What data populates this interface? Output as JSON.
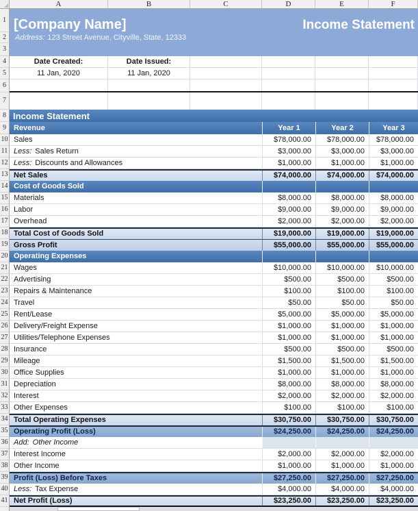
{
  "sheet": {
    "column_letters": [
      "A",
      "B",
      "C",
      "D",
      "E",
      "F"
    ],
    "row_numbers": [
      1,
      2,
      3,
      4,
      5,
      6,
      7,
      8,
      9
    ]
  },
  "banner": {
    "company_name": "[Company Name]",
    "document_title": "Income Statement",
    "address_label": "Address:",
    "address_text": "123 Street Avenue, Cityville, State, 12333"
  },
  "dates": {
    "created_label": "Date Created:",
    "created_value": "11 Jan, 2020",
    "issued_label": "Date Issued:",
    "issued_value": "11 Jan, 2020"
  },
  "statement": {
    "title": "Income Statement",
    "revenue_header": "Revenue",
    "year_headers": [
      "Year 1",
      "Year 2",
      "Year 3"
    ],
    "rows": [
      {
        "n": 10,
        "type": "item",
        "label": "Sales",
        "values": [
          "$78,000.00",
          "$78,000.00",
          "$78,000.00"
        ]
      },
      {
        "n": 11,
        "type": "item",
        "prefix": "Less:",
        "label": "Sales Return",
        "values": [
          "$3,000.00",
          "$3,000.00",
          "$3,000.00"
        ]
      },
      {
        "n": 12,
        "type": "item",
        "prefix": "Less:",
        "label": "Discounts and Allowances",
        "values": [
          "$1,000.00",
          "$1,000.00",
          "$1,000.00"
        ]
      },
      {
        "n": 13,
        "type": "subtotal",
        "label": "Net Sales",
        "values": [
          "$74,000.00",
          "$74,000.00",
          "$74,000.00"
        ]
      },
      {
        "n": 14,
        "type": "section",
        "label": "Cost of Goods Sold",
        "values": [
          "",
          "",
          ""
        ]
      },
      {
        "n": 15,
        "type": "item",
        "label": "Materials",
        "values": [
          "$8,000.00",
          "$8,000.00",
          "$8,000.00"
        ]
      },
      {
        "n": 16,
        "type": "item",
        "label": "Labor",
        "values": [
          "$9,000.00",
          "$9,000.00",
          "$9,000.00"
        ]
      },
      {
        "n": 17,
        "type": "item",
        "label": "Overhead",
        "values": [
          "$2,000.00",
          "$2,000.00",
          "$2,000.00"
        ]
      },
      {
        "n": 18,
        "type": "subtotal",
        "label": "Total Cost of Goods Sold",
        "values": [
          "$19,000.00",
          "$19,000.00",
          "$19,000.00"
        ]
      },
      {
        "n": 19,
        "type": "subtotal",
        "label": "Gross Profit",
        "values": [
          "$55,000.00",
          "$55,000.00",
          "$55,000.00"
        ]
      },
      {
        "n": 20,
        "type": "section",
        "label": "Operating Expenses",
        "values": [
          "",
          "",
          ""
        ]
      },
      {
        "n": 21,
        "type": "item",
        "label": "Wages",
        "values": [
          "$10,000.00",
          "$10,000.00",
          "$10,000.00"
        ]
      },
      {
        "n": 22,
        "type": "item",
        "label": "Advertising",
        "values": [
          "$500.00",
          "$500.00",
          "$500.00"
        ]
      },
      {
        "n": 23,
        "type": "item",
        "label": "Repairs & Maintenance",
        "values": [
          "$100.00",
          "$100.00",
          "$100.00"
        ]
      },
      {
        "n": 24,
        "type": "item",
        "label": "Travel",
        "values": [
          "$50.00",
          "$50.00",
          "$50.00"
        ]
      },
      {
        "n": 25,
        "type": "item",
        "label": "Rent/Lease",
        "values": [
          "$5,000.00",
          "$5,000.00",
          "$5,000.00"
        ]
      },
      {
        "n": 26,
        "type": "item",
        "label": "Delivery/Freight Expense",
        "values": [
          "$1,000.00",
          "$1,000.00",
          "$1,000.00"
        ]
      },
      {
        "n": 27,
        "type": "item",
        "label": "Utilities/Telephone Expenses",
        "values": [
          "$1,000.00",
          "$1,000.00",
          "$1,000.00"
        ]
      },
      {
        "n": 28,
        "type": "item",
        "label": "Insurance",
        "values": [
          "$500.00",
          "$500.00",
          "$500.00"
        ]
      },
      {
        "n": 29,
        "type": "item",
        "label": "Mileage",
        "values": [
          "$1,500.00",
          "$1,500.00",
          "$1,500.00"
        ]
      },
      {
        "n": 30,
        "type": "item",
        "label": "Office Supplies",
        "values": [
          "$1,000.00",
          "$1,000.00",
          "$1,000.00"
        ]
      },
      {
        "n": 31,
        "type": "item",
        "label": "Depreciation",
        "values": [
          "$8,000.00",
          "$8,000.00",
          "$8,000.00"
        ]
      },
      {
        "n": 32,
        "type": "item",
        "label": "Interest",
        "values": [
          "$2,000.00",
          "$2,000.00",
          "$2,000.00"
        ]
      },
      {
        "n": 33,
        "type": "item",
        "label": "Other Expenses",
        "values": [
          "$100.00",
          "$100.00",
          "$100.00"
        ]
      },
      {
        "n": 34,
        "type": "subtotal",
        "label": "Total Operating Expenses",
        "values": [
          "$30,750.00",
          "$30,750.00",
          "$30,750.00"
        ]
      },
      {
        "n": 35,
        "type": "subtotal-medium",
        "label": "Operating Profit (Loss)",
        "values": [
          "$24,250.00",
          "$24,250.00",
          "$24,250.00"
        ]
      },
      {
        "n": 36,
        "type": "note",
        "prefix": "Add:",
        "label": "Other Income",
        "values": [
          "",
          "",
          ""
        ]
      },
      {
        "n": 37,
        "type": "item",
        "label": "Interest Income",
        "values": [
          "$2,000.00",
          "$2,000.00",
          "$2,000.00"
        ]
      },
      {
        "n": 38,
        "type": "item",
        "label": "Other Income",
        "values": [
          "$1,000.00",
          "$1,000.00",
          "$1,000.00"
        ]
      },
      {
        "n": 39,
        "type": "subtotal-medium",
        "label": "Profit (Loss) Before Taxes",
        "values": [
          "$27,250.00",
          "$27,250.00",
          "$27,250.00"
        ]
      },
      {
        "n": 40,
        "type": "item",
        "prefix": "Less:",
        "label": "Tax Expense",
        "values": [
          "$4,000.00",
          "$4,000.00",
          "$4,000.00"
        ]
      },
      {
        "n": 41,
        "type": "total",
        "label": "Net Profit (Loss)",
        "values": [
          "$23,250.00",
          "$23,250.00",
          "$23,250.00"
        ]
      }
    ]
  },
  "colors": {
    "banner_blue": "#8CA9D8",
    "section_header_blue": "#4A7AB5",
    "subtotal_light_blue": "#D7E2F0",
    "subtotal_medium_blue": "#93AFD4",
    "note_cell_shade": "#DCE4EF",
    "gridline_gray": "#D9DDE3"
  }
}
